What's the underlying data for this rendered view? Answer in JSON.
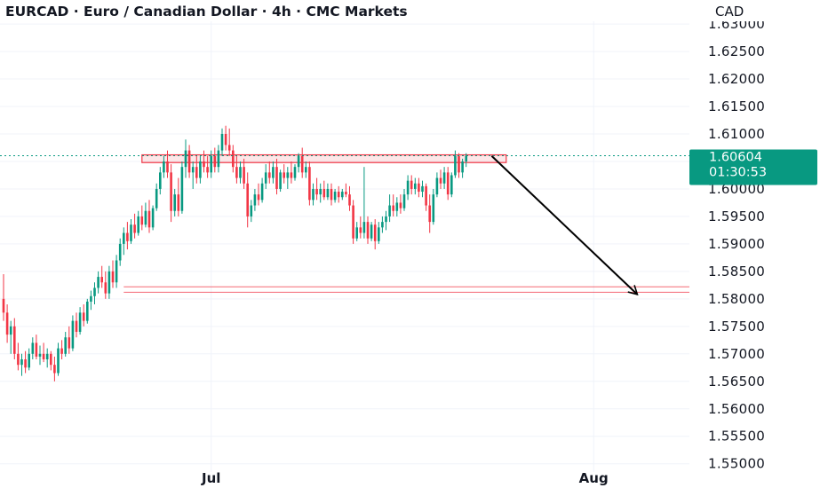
{
  "header": {
    "title": "EURCAD · Euro / Canadian Dollar · 4h · CMC Markets",
    "currency": "CAD"
  },
  "price_badge": {
    "price": "1.60604",
    "countdown": "01:30:53",
    "value": 1.60604,
    "color": "#089981"
  },
  "colors": {
    "up": "#089981",
    "down": "#f23645",
    "zone": "#f23645",
    "arrow": "#000000",
    "grid": "#f0f3fa"
  },
  "chart_data": {
    "type": "candlestick",
    "symbol": "EURCAD",
    "timeframe": "4h",
    "y_axis": {
      "min": 1.5485,
      "max": 1.6305,
      "ticks": [
        1.55,
        1.555,
        1.56,
        1.565,
        1.57,
        1.575,
        1.58,
        1.585,
        1.59,
        1.595,
        1.6,
        1.605,
        1.61,
        1.615,
        1.62,
        1.625,
        1.63
      ],
      "tick_labels": [
        "1.55000",
        "1.55500",
        "1.56000",
        "1.56500",
        "1.57000",
        "1.57500",
        "1.58000",
        "1.58500",
        "1.59000",
        "1.59500",
        "1.60000",
        "1.60500",
        "1.61000",
        "1.61500",
        "1.62000",
        "1.62500",
        "1.63000"
      ]
    },
    "x_axis": {
      "ticks": [
        {
          "label": "Jul",
          "bar_index": 57
        },
        {
          "label": "Aug",
          "bar_index": 162
        }
      ]
    },
    "grid": true,
    "last_price": 1.60604,
    "candles": [
      [
        1.58,
        1.5845,
        1.576,
        1.5775
      ],
      [
        1.5775,
        1.579,
        1.572,
        1.5735
      ],
      [
        1.5735,
        1.576,
        1.57,
        1.575
      ],
      [
        1.575,
        1.5765,
        1.569,
        1.57
      ],
      [
        1.57,
        1.572,
        1.567,
        1.568
      ],
      [
        1.568,
        1.57,
        1.566,
        1.569
      ],
      [
        1.569,
        1.5705,
        1.5665,
        1.5675
      ],
      [
        1.5675,
        1.571,
        1.567,
        1.57
      ],
      [
        1.57,
        1.573,
        1.569,
        1.572
      ],
      [
        1.572,
        1.5735,
        1.569,
        1.5695
      ],
      [
        1.5695,
        1.5715,
        1.568,
        1.57
      ],
      [
        1.57,
        1.572,
        1.5685,
        1.569
      ],
      [
        1.569,
        1.571,
        1.5675,
        1.57
      ],
      [
        1.57,
        1.5705,
        1.567,
        1.568
      ],
      [
        1.568,
        1.5695,
        1.565,
        1.5665
      ],
      [
        1.5665,
        1.572,
        1.566,
        1.571
      ],
      [
        1.571,
        1.5725,
        1.569,
        1.57
      ],
      [
        1.57,
        1.574,
        1.5695,
        1.573
      ],
      [
        1.573,
        1.575,
        1.57,
        1.571
      ],
      [
        1.571,
        1.577,
        1.5705,
        1.576
      ],
      [
        1.576,
        1.5775,
        1.573,
        1.574
      ],
      [
        1.574,
        1.5785,
        1.5735,
        1.5775
      ],
      [
        1.5775,
        1.579,
        1.575,
        1.576
      ],
      [
        1.576,
        1.58,
        1.5755,
        1.5795
      ],
      [
        1.5795,
        1.5815,
        1.578,
        1.5805
      ],
      [
        1.5805,
        1.583,
        1.579,
        1.582
      ],
      [
        1.582,
        1.585,
        1.581,
        1.584
      ],
      [
        1.584,
        1.586,
        1.582,
        1.583
      ],
      [
        1.583,
        1.585,
        1.58,
        1.581
      ],
      [
        1.581,
        1.586,
        1.58,
        1.585
      ],
      [
        1.585,
        1.587,
        1.582,
        1.583
      ],
      [
        1.583,
        1.588,
        1.582,
        1.587
      ],
      [
        1.587,
        1.591,
        1.586,
        1.59
      ],
      [
        1.59,
        1.593,
        1.588,
        1.592
      ],
      [
        1.592,
        1.594,
        1.589,
        1.5905
      ],
      [
        1.5905,
        1.5945,
        1.59,
        1.5935
      ],
      [
        1.5935,
        1.5955,
        1.591,
        1.592
      ],
      [
        1.592,
        1.596,
        1.5915,
        1.595
      ],
      [
        1.595,
        1.597,
        1.5925,
        1.5935
      ],
      [
        1.5935,
        1.5975,
        1.593,
        1.596
      ],
      [
        1.596,
        1.598,
        1.592,
        1.593
      ],
      [
        1.593,
        1.597,
        1.5925,
        1.5965
      ],
      [
        1.5965,
        1.601,
        1.596,
        1.6
      ],
      [
        1.6,
        1.604,
        1.599,
        1.603
      ],
      [
        1.603,
        1.606,
        1.602,
        1.605
      ],
      [
        1.605,
        1.607,
        1.602,
        1.603
      ],
      [
        1.603,
        1.6045,
        1.594,
        1.596
      ],
      [
        1.596,
        1.6,
        1.595,
        1.599
      ],
      [
        1.599,
        1.602,
        1.595,
        1.596
      ],
      [
        1.596,
        1.605,
        1.5955,
        1.604
      ],
      [
        1.604,
        1.609,
        1.602,
        1.607
      ],
      [
        1.607,
        1.608,
        1.602,
        1.603
      ],
      [
        1.603,
        1.605,
        1.6,
        1.604
      ],
      [
        1.604,
        1.606,
        1.601,
        1.602
      ],
      [
        1.602,
        1.606,
        1.601,
        1.605
      ],
      [
        1.605,
        1.607,
        1.603,
        1.604
      ],
      [
        1.604,
        1.606,
        1.602,
        1.603
      ],
      [
        1.603,
        1.607,
        1.602,
        1.606
      ],
      [
        1.606,
        1.6075,
        1.603,
        1.604
      ],
      [
        1.604,
        1.608,
        1.603,
        1.607
      ],
      [
        1.607,
        1.611,
        1.606,
        1.61
      ],
      [
        1.61,
        1.6115,
        1.607,
        1.608
      ],
      [
        1.608,
        1.611,
        1.606,
        1.607
      ],
      [
        1.607,
        1.608,
        1.603,
        1.604
      ],
      [
        1.604,
        1.606,
        1.601,
        1.602
      ],
      [
        1.602,
        1.605,
        1.601,
        1.604
      ],
      [
        1.604,
        1.6055,
        1.6,
        1.601
      ],
      [
        1.601,
        1.603,
        1.593,
        1.595
      ],
      [
        1.595,
        1.598,
        1.594,
        1.597
      ],
      [
        1.597,
        1.6,
        1.596,
        1.599
      ],
      [
        1.599,
        1.601,
        1.597,
        1.598
      ],
      [
        1.598,
        1.602,
        1.5975,
        1.601
      ],
      [
        1.601,
        1.6045,
        1.6,
        1.603
      ],
      [
        1.603,
        1.605,
        1.601,
        1.602
      ],
      [
        1.602,
        1.605,
        1.601,
        1.604
      ],
      [
        1.604,
        1.6055,
        1.599,
        1.6
      ],
      [
        1.6,
        1.6035,
        1.5995,
        1.603
      ],
      [
        1.603,
        1.6045,
        1.601,
        1.602
      ],
      [
        1.602,
        1.604,
        1.6,
        1.603
      ],
      [
        1.603,
        1.605,
        1.601,
        1.602
      ],
      [
        1.602,
        1.6045,
        1.6015,
        1.604
      ],
      [
        1.604,
        1.6065,
        1.603,
        1.606
      ],
      [
        1.606,
        1.6075,
        1.602,
        1.603
      ],
      [
        1.603,
        1.605,
        1.602,
        1.604
      ],
      [
        1.604,
        1.605,
        1.597,
        1.598
      ],
      [
        1.598,
        1.601,
        1.597,
        1.6
      ],
      [
        1.6,
        1.602,
        1.598,
        1.599
      ],
      [
        1.599,
        1.601,
        1.5975,
        1.6
      ],
      [
        1.6,
        1.6015,
        1.598,
        1.5985
      ],
      [
        1.5985,
        1.601,
        1.598,
        1.6
      ],
      [
        1.6,
        1.601,
        1.597,
        1.598
      ],
      [
        1.598,
        1.6,
        1.5975,
        1.5995
      ],
      [
        1.5995,
        1.6005,
        1.5975,
        1.5985
      ],
      [
        1.5985,
        1.6,
        1.598,
        1.5995
      ],
      [
        1.5995,
        1.601,
        1.5985,
        1.599
      ],
      [
        1.599,
        1.6005,
        1.596,
        1.597
      ],
      [
        1.597,
        1.598,
        1.59,
        1.591
      ],
      [
        1.591,
        1.594,
        1.5905,
        1.593
      ],
      [
        1.593,
        1.595,
        1.591,
        1.592
      ],
      [
        1.592,
        1.604,
        1.591,
        1.594
      ],
      [
        1.594,
        1.595,
        1.59,
        1.591
      ],
      [
        1.591,
        1.594,
        1.5905,
        1.5935
      ],
      [
        1.5935,
        1.5945,
        1.589,
        1.5905
      ],
      [
        1.5905,
        1.594,
        1.59,
        1.593
      ],
      [
        1.593,
        1.595,
        1.592,
        1.594
      ],
      [
        1.594,
        1.596,
        1.5925,
        1.595
      ],
      [
        1.595,
        1.599,
        1.594,
        1.597
      ],
      [
        1.597,
        1.599,
        1.595,
        1.596
      ],
      [
        1.596,
        1.5985,
        1.595,
        1.5975
      ],
      [
        1.5975,
        1.599,
        1.5955,
        1.5965
      ],
      [
        1.5965,
        1.6,
        1.596,
        1.599
      ],
      [
        1.599,
        1.6025,
        1.598,
        1.6015
      ],
      [
        1.6015,
        1.6025,
        1.599,
        1.6
      ],
      [
        1.6,
        1.602,
        1.599,
        1.601
      ],
      [
        1.601,
        1.602,
        1.5985,
        1.5995
      ],
      [
        1.5995,
        1.6015,
        1.5985,
        1.6005
      ],
      [
        1.6005,
        1.601,
        1.596,
        1.597
      ],
      [
        1.597,
        1.599,
        1.592,
        1.594
      ],
      [
        1.594,
        1.6,
        1.5935,
        1.599
      ],
      [
        1.599,
        1.603,
        1.5985,
        1.602
      ],
      [
        1.602,
        1.6035,
        1.6,
        1.601
      ],
      [
        1.601,
        1.604,
        1.6,
        1.603
      ],
      [
        1.603,
        1.604,
        1.598,
        1.599
      ],
      [
        1.599,
        1.603,
        1.5985,
        1.6025
      ],
      [
        1.6025,
        1.607,
        1.602,
        1.606
      ],
      [
        1.606,
        1.6065,
        1.602,
        1.603
      ],
      [
        1.603,
        1.6055,
        1.602,
        1.605
      ],
      [
        1.605,
        1.6065,
        1.604,
        1.606
      ]
    ],
    "annotations": [
      {
        "type": "rectangle",
        "role": "resistance-zone",
        "start_bar": 38,
        "end_bar": 138,
        "y_low": 1.6048,
        "y_high": 1.6062
      },
      {
        "type": "line",
        "role": "support-level-upper",
        "start_bar": 33,
        "y": 1.5822
      },
      {
        "type": "line",
        "role": "support-level-lower",
        "start_bar": 33,
        "y": 1.5812
      },
      {
        "type": "arrow",
        "role": "projected-move",
        "from_bar": 134,
        "from_y": 1.606,
        "to_bar": 174,
        "to_y": 1.5808
      }
    ]
  }
}
